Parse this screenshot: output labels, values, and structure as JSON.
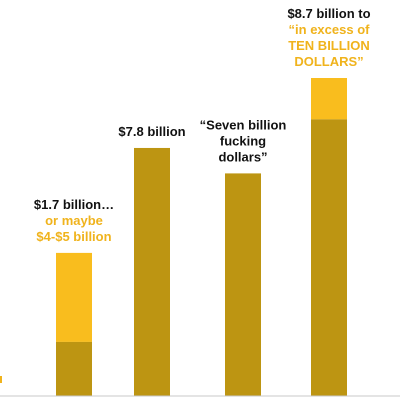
{
  "chart_data": {
    "type": "bar",
    "title": "",
    "xlabel": "",
    "ylabel": "",
    "ylim": [
      0,
      10
    ],
    "colors": {
      "base": "#bd9512",
      "upper": "#f9bd1e",
      "text_dark": "#111111",
      "text_accent": "#f0b31c",
      "axis": "#c8c8c8"
    },
    "bars": [
      {
        "low": 1.7,
        "high": 4.5,
        "label_lines": [
          {
            "text": "$1.7 billion…",
            "color": "text_dark"
          },
          {
            "text": "or maybe",
            "color": "text_accent"
          },
          {
            "text": "$4-$5 billion",
            "color": "text_accent"
          }
        ]
      },
      {
        "low": 7.8,
        "high": 7.8,
        "label_lines": [
          {
            "text": "$7.8 billion",
            "color": "text_dark"
          }
        ]
      },
      {
        "low": 7.0,
        "high": 7.0,
        "label_lines": [
          {
            "text": "“Seven billion",
            "color": "text_dark"
          },
          {
            "text": "fucking",
            "color": "text_dark"
          },
          {
            "text": "dollars”",
            "color": "text_dark"
          }
        ]
      },
      {
        "low": 8.7,
        "high": 10.0,
        "label_lines": [
          {
            "text": "$8.7 billion to",
            "color": "text_dark"
          },
          {
            "text": "“in excess of",
            "color": "text_accent"
          },
          {
            "text": "TEN BILLION",
            "color": "text_accent"
          },
          {
            "text": "DOLLARS”",
            "color": "text_accent"
          }
        ]
      }
    ]
  }
}
